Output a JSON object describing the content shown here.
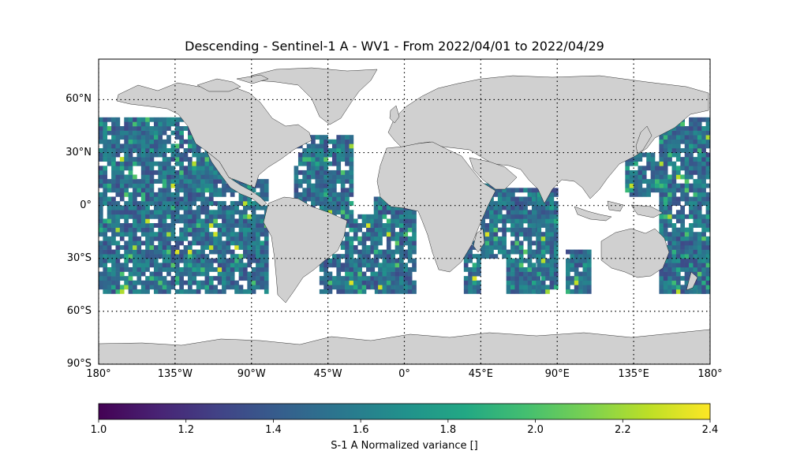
{
  "title": "Descending - Sentinel-1 A - WV1 - From 2022/04/01 to 2022/04/29",
  "map": {
    "lon_range": [
      -180,
      180
    ],
    "lat_range": [
      -90,
      90
    ],
    "lat_ticks": [
      {
        "value": 60,
        "label": "60°N"
      },
      {
        "value": 30,
        "label": "30°N"
      },
      {
        "value": 0,
        "label": "0°"
      },
      {
        "value": -30,
        "label": "30°S"
      },
      {
        "value": -60,
        "label": "60°S"
      },
      {
        "value": -90,
        "label": "90°S"
      }
    ],
    "lon_ticks": [
      {
        "value": -180,
        "label": "180°"
      },
      {
        "value": -135,
        "label": "135°W"
      },
      {
        "value": -90,
        "label": "90°W"
      },
      {
        "value": -45,
        "label": "45°W"
      },
      {
        "value": 0,
        "label": "0°"
      },
      {
        "value": 45,
        "label": "45°E"
      },
      {
        "value": 90,
        "label": "90°E"
      },
      {
        "value": 135,
        "label": "135°E"
      },
      {
        "value": 180,
        "label": "180°"
      }
    ],
    "gridlines": "dotted",
    "land_color": "#d0d0d0",
    "coastline_color": "#000000"
  },
  "colorbar": {
    "colormap": "viridis",
    "range": [
      1.0,
      2.4
    ],
    "ticks": [
      "1.0",
      "1.2",
      "1.4",
      "1.6",
      "1.8",
      "2.0",
      "2.2",
      "2.4"
    ],
    "label": "S-1 A Normalized variance []",
    "orientation": "horizontal"
  }
}
